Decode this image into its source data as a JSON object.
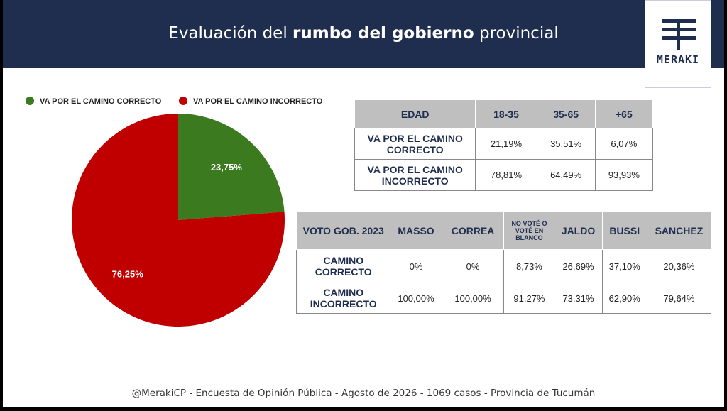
{
  "header": {
    "title_parts": [
      "Evaluación del ",
      "rumbo del gobierno",
      " provincial"
    ],
    "logo": "MERAKI"
  },
  "chart_data": {
    "type": "pie",
    "categories": [
      "VA POR EL CAMINO CORRECTO",
      "VA POR EL CAMINO INCORRECTO"
    ],
    "values": [
      23.75,
      76.25
    ],
    "value_labels": [
      "23,75%",
      "76,25%"
    ],
    "colors": [
      "#3b7a1f",
      "#c00000"
    ]
  },
  "table_age": {
    "header": [
      "EDAD",
      "18-35",
      "35-65",
      "+65"
    ],
    "rows": [
      [
        "VA POR EL CAMINO CORRECTO",
        "21,19%",
        "35,51%",
        "6,07%"
      ],
      [
        "VA POR EL CAMINO INCORRECTO",
        "78,81%",
        "64,49%",
        "93,93%"
      ]
    ]
  },
  "table_vote": {
    "header": [
      "VOTO GOB. 2023",
      "MASSO",
      "CORREA",
      "NO VOTÉ O VOTÉ EN BLANCO",
      "JALDO",
      "BUSSI",
      "SANCHEZ"
    ],
    "rows": [
      [
        "CAMINO CORRECTO",
        "0%",
        "0%",
        "8,73%",
        "26,69%",
        "37,10%",
        "20,36%"
      ],
      [
        "CAMINO INCORRECTO",
        "100,00%",
        "100,00%",
        "91,27%",
        "73,31%",
        "62,90%",
        "79,64%"
      ]
    ]
  },
  "footer": "@MerakiCP - Encuesta de Opinión Pública - Agosto de 2026 - 1069 casos - Provincia de Tucumán"
}
